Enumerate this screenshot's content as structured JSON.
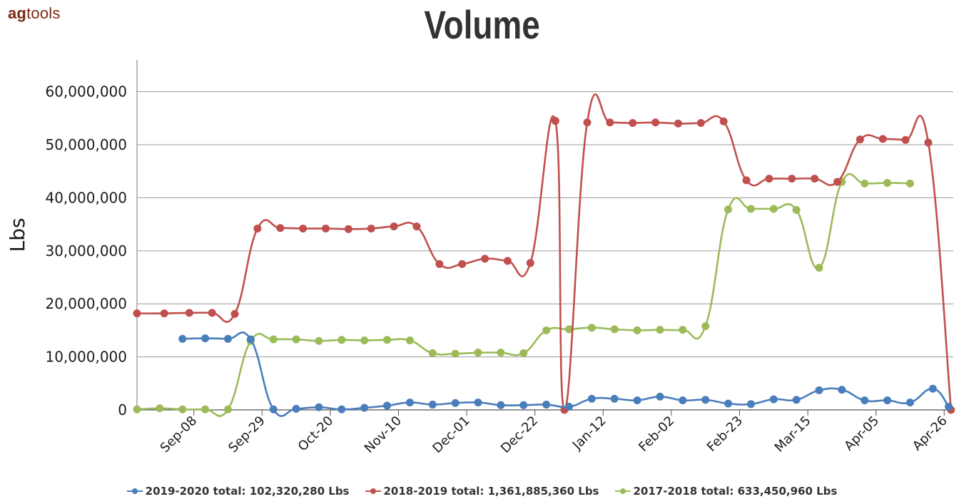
{
  "header": {
    "logo_prefix": "ag",
    "logo_suffix": "tools",
    "title": "Volume"
  },
  "chart_data": {
    "type": "line",
    "title": "Volume",
    "xlabel": "",
    "ylabel": "Lbs",
    "ylim": [
      0,
      66000000
    ],
    "yticks": [
      0,
      10000000,
      20000000,
      30000000,
      40000000,
      50000000,
      60000000
    ],
    "ytick_labels": [
      "0",
      "10,000,000",
      "20,000,000",
      "30,000,000",
      "40,000,000",
      "50,000,000",
      "60,000,000"
    ],
    "x_tick_labels": [
      "Sep-08",
      "Sep-29",
      "Oct-20",
      "Nov-10",
      "Dec-01",
      "Dec-22",
      "Jan-12",
      "Feb-02",
      "Feb-23",
      "Mar-15",
      "Apr-05",
      "Apr-26"
    ],
    "x_tick_weeks": [
      2,
      5,
      8,
      11,
      14,
      17,
      20,
      23,
      26,
      29,
      32,
      35
    ],
    "x_range_weeks": [
      -0.5,
      35.4
    ],
    "grid": true,
    "legend_position": "bottom",
    "series": [
      {
        "name": "2019-2020",
        "legend": "2019-2020 total: 102,320,280 Lbs",
        "color": "#4a7ebb",
        "weeks": [
          0.5,
          1.5,
          2.5,
          3.5,
          4.5,
          5.5,
          6.5,
          7.5,
          8.5,
          9.5,
          10.5,
          11.5,
          12.5,
          13.5,
          14.5,
          15.5,
          16.5,
          17.5,
          18.5,
          19.5,
          20.5,
          21.5,
          22.5,
          23.5,
          24.5,
          25.5,
          26.5,
          27.5,
          28.5,
          29.5,
          30.5,
          31.5,
          32.5,
          33.5,
          34.5,
          35.2
        ],
        "values": [
          null,
          13400000,
          13500000,
          13400000,
          13300000,
          100000,
          200000,
          500000,
          100000,
          400000,
          800000,
          1400000,
          1000000,
          1300000,
          1400000,
          900000,
          900000,
          1000000,
          600000,
          2100000,
          2100000,
          1800000,
          2500000,
          1800000,
          1900000,
          1200000,
          1100000,
          2000000,
          1900000,
          3700000,
          3800000,
          1800000,
          1800000,
          1400000,
          4000000,
          600000
        ]
      },
      {
        "name": "2018-2019",
        "legend": "2018-2019 total: 1,361,885,360 Lbs",
        "color": "#c0504d",
        "weeks": [
          -0.5,
          0.7,
          1.8,
          2.8,
          3.8,
          4.8,
          5.8,
          6.8,
          7.8,
          8.8,
          9.8,
          10.8,
          11.8,
          12.8,
          13.8,
          14.8,
          15.8,
          16.8,
          17.9,
          18.3,
          19.3,
          20.3,
          21.3,
          22.3,
          23.3,
          24.3,
          25.3,
          26.3,
          27.3,
          28.3,
          29.3,
          30.3,
          31.3,
          32.3,
          33.3,
          34.3,
          35.3
        ],
        "values": [
          18200000,
          18200000,
          18300000,
          18300000,
          18100000,
          34200000,
          34300000,
          34200000,
          34200000,
          34100000,
          34200000,
          34600000,
          34600000,
          27500000,
          27500000,
          28500000,
          28100000,
          27700000,
          54500000,
          0,
          54200000,
          54200000,
          54100000,
          54200000,
          54000000,
          54100000,
          54400000,
          43300000,
          43600000,
          43600000,
          43600000,
          43000000,
          51000000,
          51100000,
          50900000,
          50400000,
          0
        ]
      },
      {
        "name": "2017-2018",
        "legend": "2017-2018 total: 633,450,960 Lbs",
        "color": "#9bbb59",
        "weeks": [
          -0.5,
          0.5,
          1.5,
          2.5,
          3.5,
          4.5,
          5.5,
          6.5,
          7.5,
          8.5,
          9.5,
          10.5,
          11.5,
          12.5,
          13.5,
          14.5,
          15.5,
          16.5,
          17.5,
          18.5,
          19.5,
          20.5,
          21.5,
          22.5,
          23.5,
          24.5,
          25.5,
          26.5,
          27.5,
          28.5,
          29.5,
          30.5,
          31.5,
          32.5,
          33.5,
          34.5
        ],
        "values": [
          100000,
          300000,
          100000,
          100000,
          100000,
          13000000,
          13300000,
          13300000,
          13000000,
          13200000,
          13100000,
          13200000,
          13100000,
          10700000,
          10600000,
          10800000,
          10800000,
          10700000,
          15000000,
          15200000,
          15500000,
          15200000,
          15000000,
          15100000,
          15100000,
          15800000,
          37800000,
          37900000,
          37900000,
          37700000,
          26800000,
          43000000,
          42700000,
          42800000,
          42700000,
          null
        ]
      }
    ]
  }
}
